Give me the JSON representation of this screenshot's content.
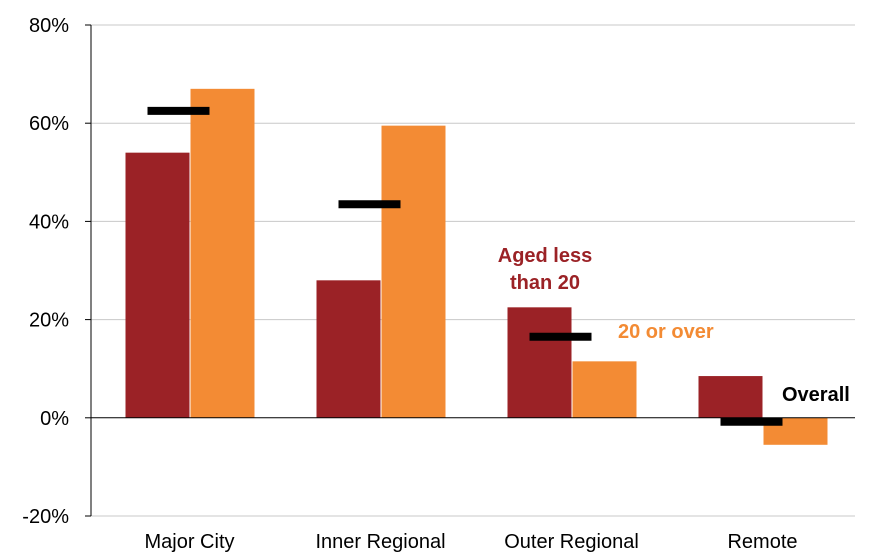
{
  "chart_data": {
    "type": "bar",
    "categories": [
      "Major City",
      "Inner Regional",
      "Outer Regional",
      "Remote"
    ],
    "series": [
      {
        "name": "Aged less than 20",
        "color": "#9B2226",
        "values": [
          54,
          28,
          22.5,
          8.5
        ]
      },
      {
        "name": "20 or over",
        "color": "#F38B34",
        "values": [
          67,
          59.5,
          11.5,
          -5.5
        ]
      }
    ],
    "overall": {
      "name": "Overall",
      "color": "#000000",
      "values": [
        62.5,
        43.5,
        16.5,
        -0.8
      ]
    },
    "ylim": [
      -20,
      80
    ],
    "yticks": [
      -20,
      0,
      20,
      40,
      60,
      80
    ],
    "ytick_labels": [
      "-20%",
      "0%",
      "20%",
      "40%",
      "60%",
      "80%"
    ],
    "grid": true,
    "annotations": {
      "aged_line1": "Aged less",
      "aged_line2": "than 20",
      "over": "20 or over",
      "overall": "Overall"
    }
  }
}
